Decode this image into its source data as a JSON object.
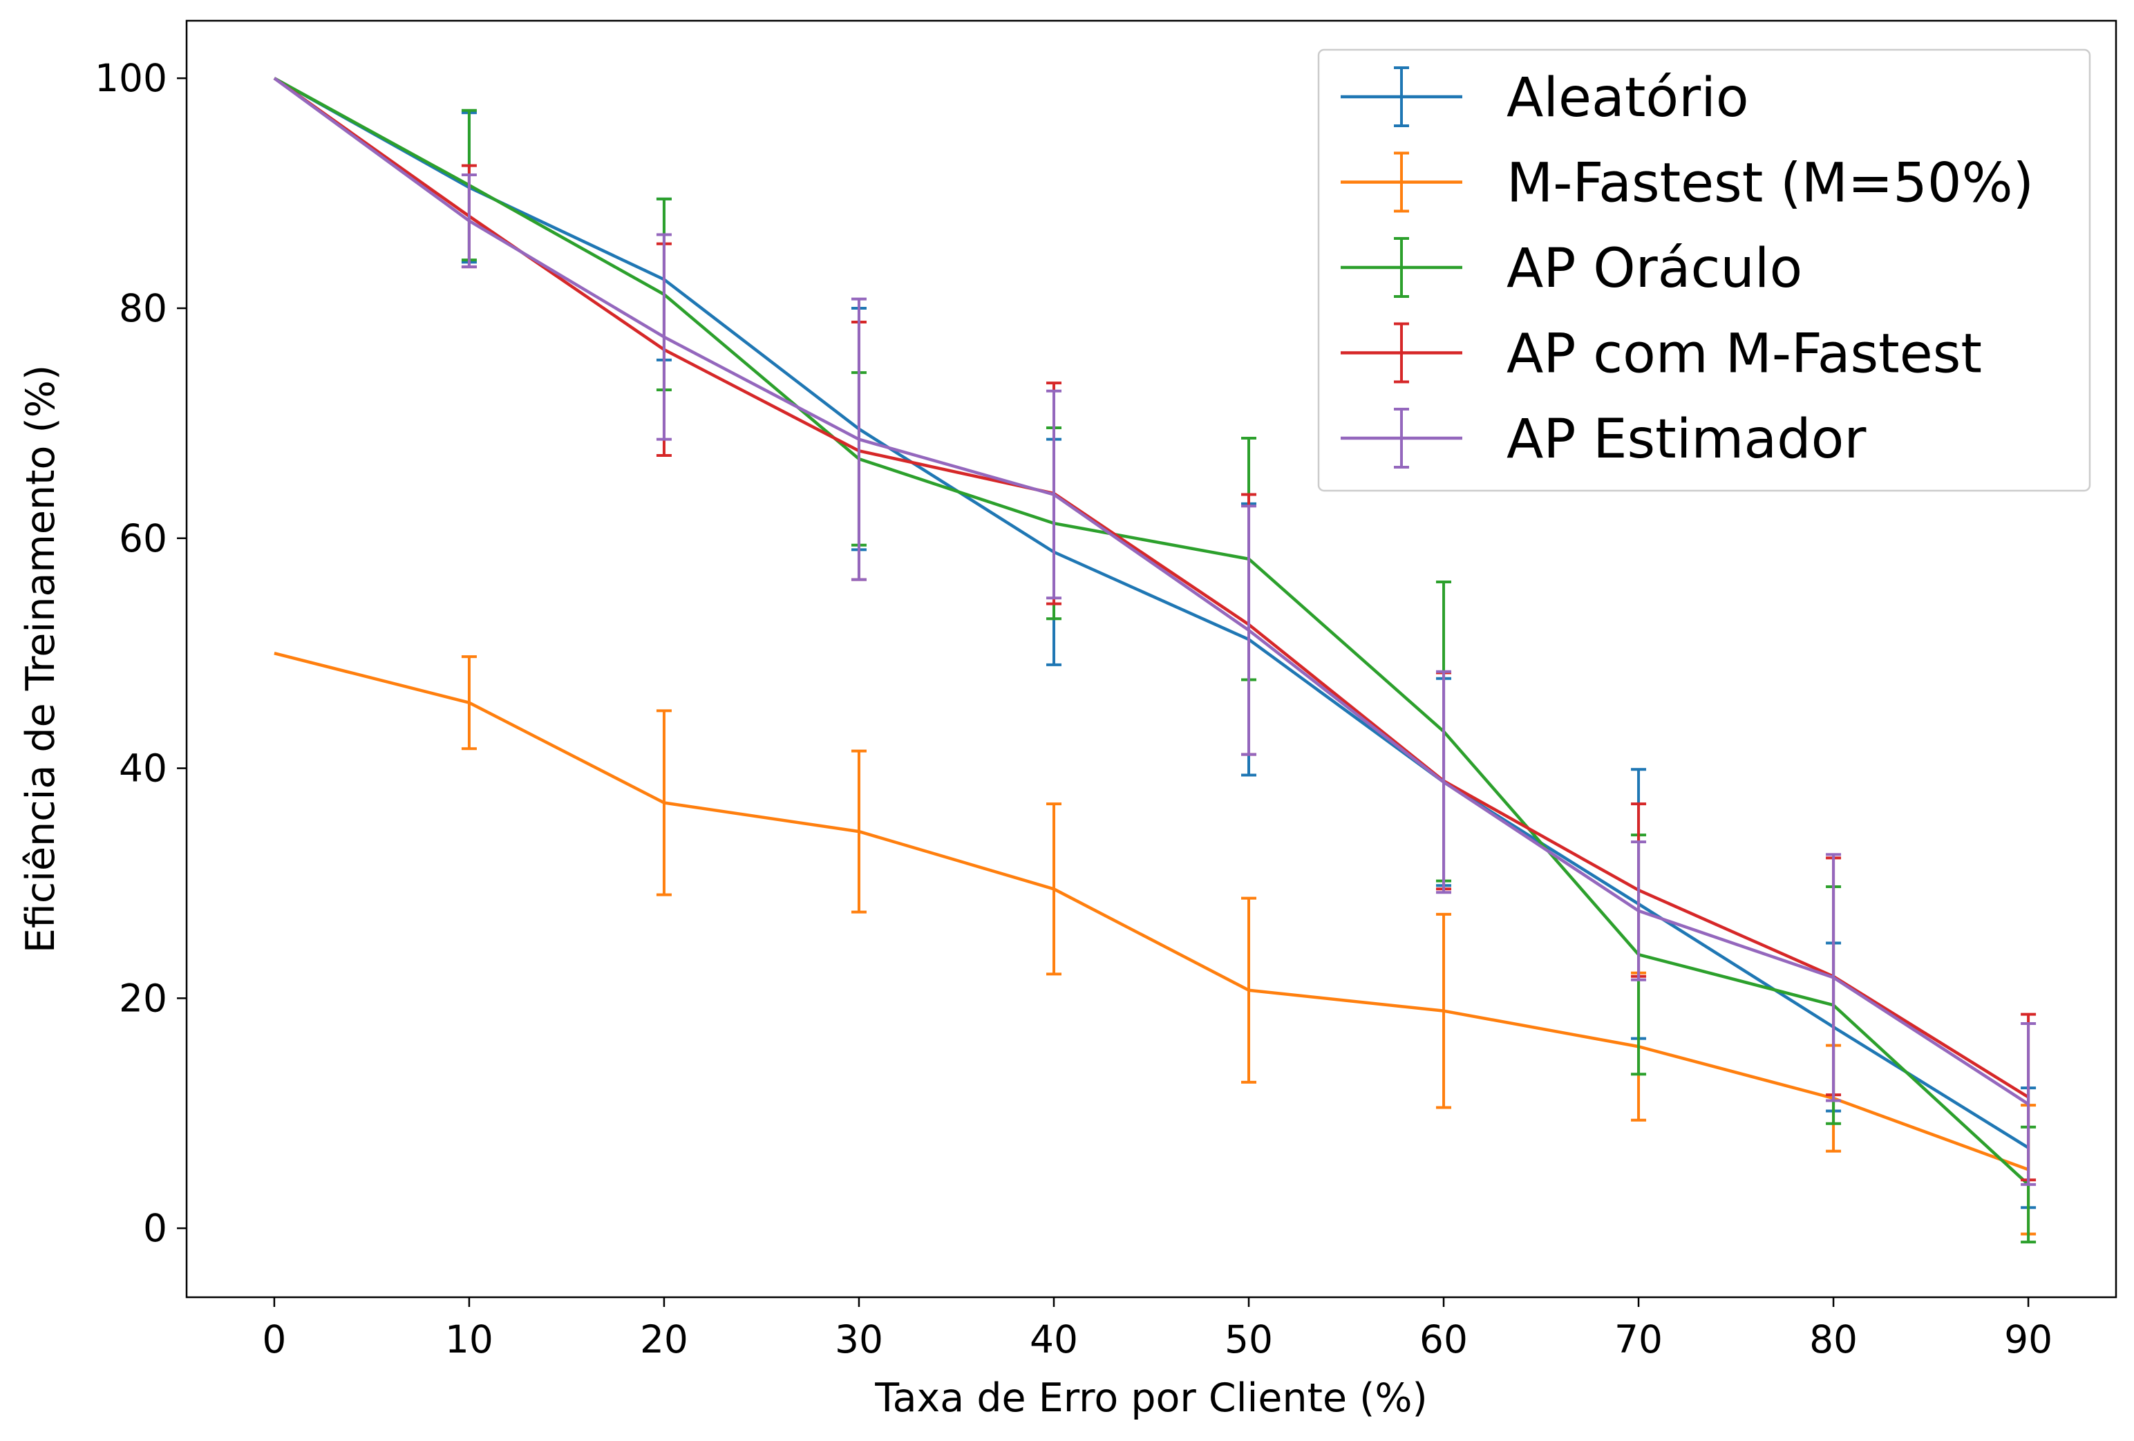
{
  "chart_data": {
    "type": "line",
    "xlabel": "Taxa de Erro por Cliente (%)",
    "ylabel": "Eficiência de Treinamento (%)",
    "x": [
      0,
      10,
      20,
      30,
      40,
      50,
      60,
      70,
      80,
      90
    ],
    "xticks": [
      "0",
      "10",
      "20",
      "30",
      "40",
      "50",
      "60",
      "70",
      "80",
      "90"
    ],
    "yticks": [
      "0",
      "20",
      "40",
      "60",
      "80",
      "100"
    ],
    "xlim": [
      -4.5,
      94.5
    ],
    "ylim": [
      -6,
      105
    ],
    "grid": false,
    "legend_position": "top-right",
    "error_bars": true,
    "series": [
      {
        "name": "Aleatório",
        "color": "#1f77b4",
        "values": [
          100,
          90.5,
          82.5,
          69.5,
          58.8,
          51.2,
          38.8,
          28.2,
          17.5,
          7.0
        ],
        "errors": [
          0,
          6.5,
          7.0,
          10.5,
          9.8,
          11.8,
          9.0,
          11.7,
          7.3,
          5.2
        ]
      },
      {
        "name": "M-Fastest (M=50%)",
        "color": "#ff7f0e",
        "values": [
          50,
          45.7,
          37.0,
          34.5,
          29.5,
          20.7,
          18.9,
          15.8,
          11.3,
          5.1
        ],
        "errors": [
          0,
          4.0,
          8.0,
          7.0,
          7.4,
          8.0,
          8.4,
          6.4,
          4.6,
          5.6
        ]
      },
      {
        "name": "AP Oráculo",
        "color": "#2ca02c",
        "values": [
          100,
          90.7,
          81.2,
          66.9,
          61.3,
          58.2,
          43.2,
          23.8,
          19.4,
          3.8
        ],
        "errors": [
          0,
          6.5,
          8.3,
          7.5,
          8.3,
          10.5,
          13.0,
          10.4,
          10.3,
          5.0
        ]
      },
      {
        "name": "AP com M-Fastest",
        "color": "#d62728",
        "values": [
          100,
          88.0,
          76.4,
          67.6,
          63.9,
          52.5,
          38.9,
          29.4,
          21.9,
          11.4
        ],
        "errors": [
          0,
          4.4,
          9.2,
          11.2,
          9.6,
          11.3,
          9.4,
          7.5,
          10.3,
          7.2
        ]
      },
      {
        "name": "AP Estimador",
        "color": "#9467bd",
        "values": [
          100,
          87.6,
          77.5,
          68.6,
          63.8,
          52.0,
          38.8,
          27.6,
          21.8,
          10.8
        ],
        "errors": [
          0,
          4.0,
          8.9,
          12.2,
          9.0,
          10.8,
          9.6,
          6.0,
          10.7,
          7.0
        ]
      }
    ]
  }
}
